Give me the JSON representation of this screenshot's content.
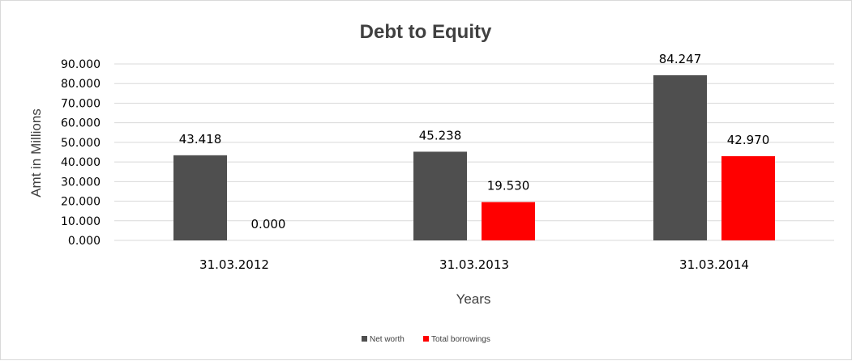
{
  "chart_data": {
    "type": "bar",
    "title": "Debt to Equity",
    "xlabel": "Years",
    "ylabel": "Amt in Millions",
    "categories": [
      "31.03.2012",
      "31.03.2013",
      "31.03.2014"
    ],
    "series": [
      {
        "name": "Net worth",
        "values": [
          43.418,
          45.238,
          84.247
        ],
        "color": "#4f4f4f"
      },
      {
        "name": "Total borrowings",
        "values": [
          0.0,
          19.53,
          42.97
        ],
        "color": "#ff0000"
      }
    ],
    "data_labels": [
      [
        "43.418",
        "45.238",
        "84.247"
      ],
      [
        "0.000",
        "19.530",
        "42.970"
      ]
    ],
    "y_ticks": [
      "0.000",
      "10.000",
      "20.000",
      "30.000",
      "40.000",
      "50.000",
      "60.000",
      "70.000",
      "80.000",
      "90.000"
    ],
    "ylim": [
      0,
      90
    ],
    "grid": true,
    "legend_position": "bottom"
  }
}
